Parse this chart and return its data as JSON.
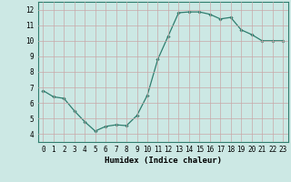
{
  "x": [
    0,
    1,
    2,
    3,
    4,
    5,
    6,
    7,
    8,
    9,
    10,
    11,
    12,
    13,
    14,
    15,
    16,
    17,
    18,
    19,
    20,
    21,
    22,
    23
  ],
  "y": [
    6.8,
    6.4,
    6.3,
    5.5,
    4.8,
    4.2,
    4.5,
    4.6,
    4.55,
    5.2,
    6.5,
    8.8,
    10.3,
    11.8,
    11.85,
    11.85,
    11.7,
    11.4,
    11.5,
    10.7,
    10.4,
    10.0,
    10.0,
    10.0
  ],
  "line_color": "#2e7d6e",
  "marker": "D",
  "marker_size": 1.8,
  "xlabel": "Humidex (Indice chaleur)",
  "xlim": [
    -0.5,
    23.5
  ],
  "ylim": [
    3.5,
    12.5
  ],
  "yticks": [
    4,
    5,
    6,
    7,
    8,
    9,
    10,
    11,
    12
  ],
  "xticks": [
    0,
    1,
    2,
    3,
    4,
    5,
    6,
    7,
    8,
    9,
    10,
    11,
    12,
    13,
    14,
    15,
    16,
    17,
    18,
    19,
    20,
    21,
    22,
    23
  ],
  "background_color": "#cce8e4",
  "grid_color": "#c8a8a8",
  "tick_fontsize": 5.5,
  "xlabel_fontsize": 6.5
}
